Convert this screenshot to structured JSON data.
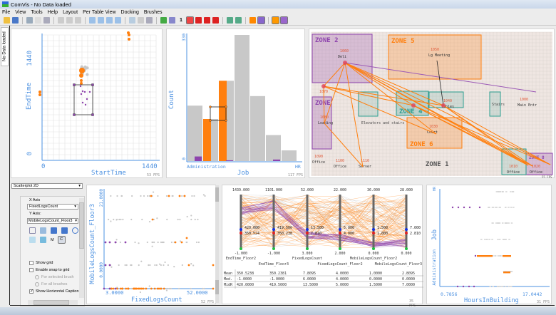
{
  "window": {
    "title": "ComVis - No Data loaded"
  },
  "menu": [
    "File",
    "View",
    "Tools",
    "Help",
    "Layout",
    "Per Table View",
    "Docking",
    "Brushes"
  ],
  "toolbar": {
    "brush_number": "1"
  },
  "side_tab": "No Data loaded",
  "colors": {
    "orange": "#ff7f0e",
    "purple": "#8e44ad",
    "grey": "#c8c8c8",
    "axis": "#4b90e0"
  },
  "scatter1": {
    "x_label": "StartTime",
    "y_label": "EndTime",
    "x_min": "0",
    "x_max": "1440",
    "y_min": "0",
    "y_max": "1440",
    "fps": "53 FPS"
  },
  "histogram": {
    "x_label": "Job",
    "y_label": "Count",
    "x_first": "Administration",
    "x_last": "HR",
    "y_min": "0",
    "y_max": "330",
    "fps": "117 FPS",
    "grey": [
      145,
      110,
      210,
      330,
      170,
      68,
      28
    ],
    "orange": [
      0,
      110,
      210,
      0,
      0,
      0,
      0
    ],
    "purple": [
      12,
      0,
      2,
      0,
      0,
      4,
      0
    ]
  },
  "map": {
    "fps": "55 FPS",
    "zones": [
      {
        "name": "ZONE 2",
        "color": "#8e44ad"
      },
      {
        "name": "ZONE 5",
        "color": "#ff7f0e"
      },
      {
        "name": "ZONE 4",
        "color": "#2a9d8f"
      },
      {
        "name": "ZONE 6",
        "color": "#ff7f0e"
      },
      {
        "name": "ZONE 1",
        "color": "#555555"
      },
      {
        "name": "ZONE 8",
        "color": "#8e44ad"
      },
      {
        "name": "ZONE",
        "color": "#8e44ad"
      }
    ],
    "rooms": [
      {
        "id": "1060",
        "name": "Deli"
      },
      {
        "id": "1050",
        "name": "Lg Meeting"
      },
      {
        "id": "1070",
        "name": ""
      },
      {
        "id": "1080",
        "name": "Loading"
      },
      {
        "id": "1040",
        "name": "Tables"
      },
      {
        "id": "1030",
        "name": "Court"
      },
      {
        "id": "1000",
        "name": "Main Entr"
      },
      {
        "id": "1090",
        "name": "Office"
      },
      {
        "id": "1100",
        "name": "Office"
      },
      {
        "id": "1110",
        "name": "Server"
      },
      {
        "id": "1010",
        "name": "Office"
      },
      {
        "id": "1020",
        "name": "Office"
      }
    ],
    "labels": {
      "elevators": "Elevators and stairs",
      "stairs": "Stairs"
    }
  },
  "controls": {
    "view_type": "Scatterplot 2D",
    "x_axis_label": "X Axis",
    "x_axis": "FixedLogsCount",
    "y_axis_label": "Y Axis:",
    "y_axis": "MobileLogsCount_Floor3",
    "tool_letters": [
      "M",
      "C"
    ],
    "show_grid": "Show grid",
    "snap": "Enable snap to grid",
    "for_selected": "For selected brush",
    "for_all": "For all brushes",
    "show_h_caption": "Show Horizontal Caption"
  },
  "scatter2": {
    "x_label": "FixedLogsCount",
    "y_label": "MobileLogsCount_Floor3",
    "x_min": "3.0000",
    "x_max": "52.0000",
    "y_min": "0.0000",
    "y_max": "21.0000",
    "fps": "52 FPS"
  },
  "parallel": {
    "fps": "35 FPS",
    "axes": [
      {
        "name": "EndTime_Floor2",
        "max": "1439.000",
        "min": "-1.000",
        "v1": "420.000",
        "v2": "350.524"
      },
      {
        "name": "EndTime_Floor3",
        "max": "1101.000",
        "min": "-1.000",
        "v1": "419.500",
        "v2": "350.238"
      },
      {
        "name": "FixedLogsCount",
        "max": "52.000",
        "min": "3.000",
        "v1": "13.500",
        "v2": "7.810"
      },
      {
        "name": "FixedLogsCount_Floor2",
        "max": "22.000",
        "min": "2.000",
        "v1": "5.000",
        "v2": "4.000"
      },
      {
        "name": "MobileLogsCount_Floor2",
        "max": "36.000",
        "min": "0.000",
        "v1": "1.500",
        "v2": "1.000"
      },
      {
        "name": "MobileLogsCount_Floor3",
        "max": "28.000",
        "min": "0.000",
        "v1": "7.000",
        "v2": "2.810"
      }
    ],
    "stats": [
      {
        "label": "Mean",
        "values": [
          "350.5238",
          "350.2381",
          "7.8095",
          "4.0000",
          "1.0000",
          "2.8095"
        ]
      },
      {
        "label": "Med.",
        "values": [
          "-1.0000",
          "-1.0000",
          "6.0000",
          "4.0000",
          "0.0000",
          "0.0000"
        ]
      },
      {
        "label": "MidR",
        "values": [
          "420.0000",
          "419.5000",
          "13.5000",
          "5.0000",
          "1.5000",
          "7.0000"
        ]
      }
    ]
  },
  "scatter3": {
    "x_label": "HoursInBuilding",
    "y_label": "Job",
    "x_min": "0.7856",
    "x_max": "17.0442",
    "y_first": "Administration",
    "y_last": "HR",
    "fps": "31 FPS"
  }
}
